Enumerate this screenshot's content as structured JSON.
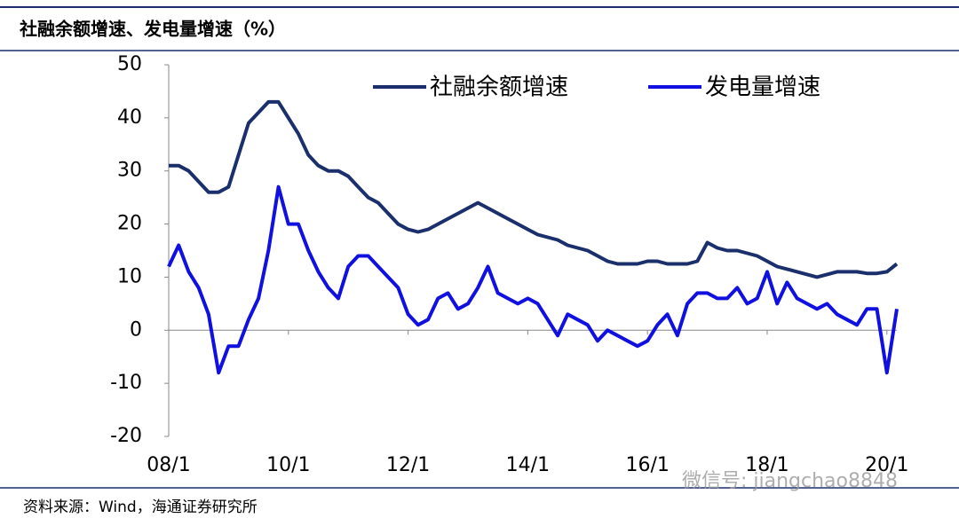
{
  "chart_data": {
    "type": "line",
    "title": "社融余额增速、发电量增速（%）",
    "source": "资料来源：Wind，海通证券研究所",
    "watermark": "微信号: jiangchao8848",
    "categories": [
      "08/1",
      null,
      null,
      null,
      null,
      null,
      null,
      null,
      null,
      null,
      null,
      null,
      "10/1",
      null,
      null,
      null,
      null,
      null,
      null,
      null,
      null,
      null,
      null,
      null,
      "12/1",
      null,
      null,
      null,
      null,
      null,
      null,
      null,
      null,
      null,
      null,
      null,
      "14/1",
      null,
      null,
      null,
      null,
      null,
      null,
      null,
      null,
      null,
      null,
      null,
      "16/1",
      null,
      null,
      null,
      null,
      null,
      null,
      null,
      null,
      null,
      null,
      null,
      "18/1",
      null,
      null,
      null,
      null,
      null,
      null,
      null,
      null,
      null,
      null,
      null,
      "20/1",
      null
    ],
    "series": [
      {
        "name": "社融余额增速",
        "color": "#1a2f6b",
        "values": [
          31,
          31,
          30,
          28,
          26,
          26,
          27,
          33,
          39,
          41,
          43,
          43,
          40,
          37,
          33,
          31,
          30,
          30,
          29,
          27,
          25,
          24,
          22,
          20,
          19,
          18.5,
          19,
          20,
          21,
          22,
          23,
          24,
          23,
          22,
          21,
          20,
          19,
          18,
          17.5,
          17,
          16,
          15.5,
          15,
          14,
          13,
          12.5,
          12.5,
          12.5,
          13,
          13,
          12.5,
          12.5,
          12.5,
          13,
          16.5,
          15.5,
          15,
          15,
          14.5,
          14,
          13,
          12,
          11.5,
          11,
          10.5,
          10,
          10.5,
          11,
          11,
          11,
          10.7,
          10.7,
          11,
          12.5
        ]
      },
      {
        "name": "发电量增速",
        "color": "#1010e0",
        "values": [
          12,
          16,
          11,
          8,
          3,
          -8,
          -3,
          -3,
          2,
          6,
          15,
          27,
          20,
          20,
          15,
          11,
          8,
          6,
          12,
          14,
          14,
          12,
          10,
          8,
          3,
          1,
          2,
          6,
          7,
          4,
          5,
          8,
          12,
          7,
          6,
          5,
          6,
          5,
          2,
          -1,
          3,
          2,
          1,
          -2,
          0,
          -1,
          -2,
          -3,
          -2,
          1,
          3,
          -1,
          5,
          7,
          7,
          6,
          6,
          8,
          5,
          6,
          11,
          5,
          9,
          6,
          5,
          4,
          5,
          3,
          2,
          1,
          4,
          4,
          -8,
          4
        ]
      }
    ],
    "ylim": [
      -20,
      50
    ],
    "yticks": [
      -20,
      -10,
      0,
      10,
      20,
      30,
      40,
      50
    ],
    "legend": "top"
  }
}
